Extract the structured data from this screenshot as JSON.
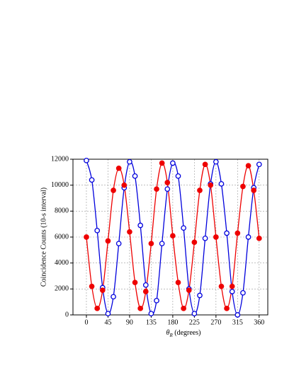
{
  "chart_data": {
    "type": "scatter",
    "x_label": {
      "symbol": "θ",
      "subscript": "R",
      "text": " (degrees)"
    },
    "y_label": "Coincidence Counts (10-s interval)",
    "x": [
      0,
      11.25,
      22.5,
      33.75,
      45,
      56.25,
      67.5,
      78.75,
      90,
      101.25,
      112.5,
      123.75,
      135,
      146.25,
      157.5,
      168.75,
      180,
      191.25,
      202.5,
      213.75,
      225,
      236.25,
      247.5,
      258.75,
      270,
      281.25,
      292.5,
      303.75,
      315,
      326.25,
      337.5,
      348.75,
      360
    ],
    "series": [
      {
        "color": "#0000dd",
        "marker": "open",
        "values": [
          11900,
          10400,
          6500,
          2100,
          100,
          1400,
          5500,
          9800,
          11800,
          10700,
          6900,
          2300,
          100,
          1100,
          5500,
          9700,
          11700,
          10700,
          6700,
          2000,
          100,
          1500,
          5900,
          10100,
          11800,
          10100,
          6300,
          1800,
          0,
          1700,
          6000,
          9800,
          11600
        ]
      },
      {
        "color": "#ee0000",
        "marker": "filled",
        "values": [
          6000,
          2200,
          500,
          1900,
          5700,
          9600,
          11300,
          10000,
          6400,
          2500,
          500,
          1800,
          5500,
          9700,
          11700,
          10200,
          6100,
          2500,
          500,
          1900,
          5600,
          9600,
          11600,
          10000,
          6000,
          2200,
          500,
          2200,
          6300,
          9900,
          11500,
          9600,
          5900
        ]
      }
    ],
    "xlim": [
      -28,
      378
    ],
    "xticks": [
      0,
      45,
      90,
      135,
      180,
      225,
      270,
      315,
      360
    ],
    "ylim": [
      0,
      12000
    ],
    "yticks": [
      0,
      2000,
      4000,
      6000,
      8000,
      10000,
      12000
    ],
    "grid": true
  }
}
